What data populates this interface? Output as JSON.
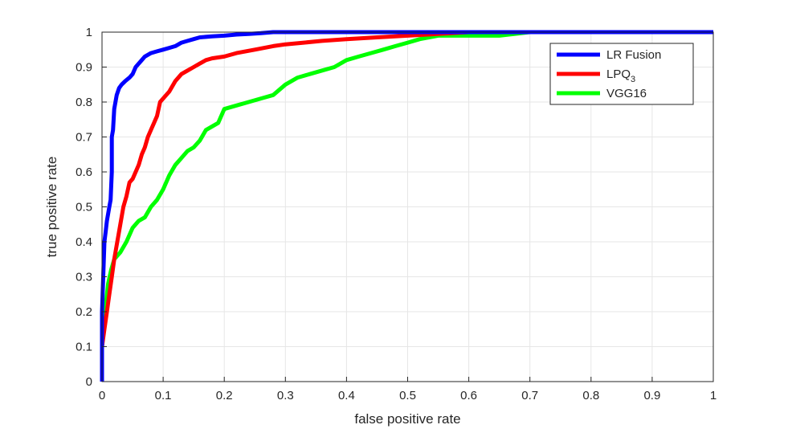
{
  "chart_data": {
    "type": "line",
    "title": "",
    "xlabel": "false positive rate",
    "ylabel": "true positive rate",
    "xlim": [
      0,
      1
    ],
    "ylim": [
      0,
      1
    ],
    "grid": true,
    "legend_position": "top-right",
    "x_ticks": [
      "0",
      "0.1",
      "0.2",
      "0.3",
      "0.4",
      "0.5",
      "0.6",
      "0.7",
      "0.8",
      "0.9",
      "1"
    ],
    "y_ticks": [
      "0",
      "0.1",
      "0.2",
      "0.3",
      "0.4",
      "0.5",
      "0.6",
      "0.7",
      "0.8",
      "0.9",
      "1"
    ],
    "series": [
      {
        "name": "LR Fusion",
        "legend_main": "LR Fusion",
        "legend_sub": "",
        "color": "#0000ff",
        "x": [
          0,
          0,
          0.002,
          0.004,
          0.006,
          0.008,
          0.01,
          0.012,
          0.014,
          0.016,
          0.016,
          0.018,
          0.02,
          0.024,
          0.028,
          0.032,
          0.038,
          0.045,
          0.05,
          0.055,
          0.06,
          0.065,
          0.07,
          0.08,
          0.09,
          0.1,
          0.11,
          0.12,
          0.13,
          0.14,
          0.15,
          0.16,
          0.18,
          0.2,
          0.22,
          0.24,
          0.26,
          0.28,
          0.3,
          0.35,
          0.4,
          0.5,
          0.6,
          0.7,
          0.8,
          0.9,
          1.0
        ],
        "y": [
          0,
          0.2,
          0.3,
          0.4,
          0.43,
          0.46,
          0.48,
          0.5,
          0.52,
          0.6,
          0.7,
          0.72,
          0.78,
          0.82,
          0.84,
          0.85,
          0.86,
          0.87,
          0.88,
          0.9,
          0.91,
          0.92,
          0.93,
          0.94,
          0.945,
          0.95,
          0.955,
          0.96,
          0.97,
          0.975,
          0.98,
          0.985,
          0.988,
          0.99,
          0.993,
          0.995,
          0.997,
          1.0,
          1.0,
          1.0,
          1.0,
          1.0,
          1.0,
          1.0,
          1.0,
          1.0,
          1.0
        ]
      },
      {
        "name": "LPQ3",
        "legend_main": "LPQ",
        "legend_sub": "3",
        "color": "#ff0000",
        "x": [
          0,
          0,
          0.004,
          0.008,
          0.012,
          0.016,
          0.02,
          0.025,
          0.03,
          0.035,
          0.04,
          0.045,
          0.05,
          0.055,
          0.06,
          0.065,
          0.07,
          0.075,
          0.08,
          0.085,
          0.09,
          0.095,
          0.1,
          0.11,
          0.12,
          0.13,
          0.14,
          0.15,
          0.16,
          0.17,
          0.18,
          0.2,
          0.22,
          0.25,
          0.28,
          0.3,
          0.33,
          0.36,
          0.4,
          0.45,
          0.5,
          0.55,
          0.6,
          0.7,
          0.8,
          0.9,
          1.0
        ],
        "y": [
          0,
          0.1,
          0.15,
          0.2,
          0.25,
          0.3,
          0.35,
          0.4,
          0.45,
          0.5,
          0.53,
          0.57,
          0.58,
          0.6,
          0.62,
          0.65,
          0.67,
          0.7,
          0.72,
          0.74,
          0.76,
          0.8,
          0.81,
          0.83,
          0.86,
          0.88,
          0.89,
          0.9,
          0.91,
          0.92,
          0.925,
          0.93,
          0.94,
          0.95,
          0.96,
          0.965,
          0.97,
          0.975,
          0.98,
          0.985,
          0.99,
          0.995,
          1.0,
          1.0,
          1.0,
          1.0,
          1.0
        ]
      },
      {
        "name": "VGG16",
        "legend_main": "VGG16",
        "legend_sub": "",
        "color": "#00ff00",
        "x": [
          0,
          0,
          0.005,
          0.01,
          0.015,
          0.02,
          0.025,
          0.03,
          0.04,
          0.05,
          0.06,
          0.07,
          0.08,
          0.09,
          0.1,
          0.11,
          0.12,
          0.13,
          0.14,
          0.15,
          0.16,
          0.17,
          0.18,
          0.19,
          0.2,
          0.22,
          0.24,
          0.26,
          0.28,
          0.3,
          0.32,
          0.34,
          0.36,
          0.38,
          0.4,
          0.42,
          0.44,
          0.46,
          0.48,
          0.5,
          0.52,
          0.55,
          0.6,
          0.65,
          0.7,
          0.75,
          0.8,
          0.9,
          1.0
        ],
        "y": [
          0,
          0.1,
          0.2,
          0.28,
          0.32,
          0.35,
          0.36,
          0.37,
          0.4,
          0.44,
          0.46,
          0.47,
          0.5,
          0.52,
          0.55,
          0.59,
          0.62,
          0.64,
          0.66,
          0.67,
          0.69,
          0.72,
          0.73,
          0.74,
          0.78,
          0.79,
          0.8,
          0.81,
          0.82,
          0.85,
          0.87,
          0.88,
          0.89,
          0.9,
          0.92,
          0.93,
          0.94,
          0.95,
          0.96,
          0.97,
          0.98,
          0.99,
          0.99,
          0.99,
          1.0,
          1.0,
          1.0,
          1.0,
          1.0
        ]
      }
    ]
  }
}
